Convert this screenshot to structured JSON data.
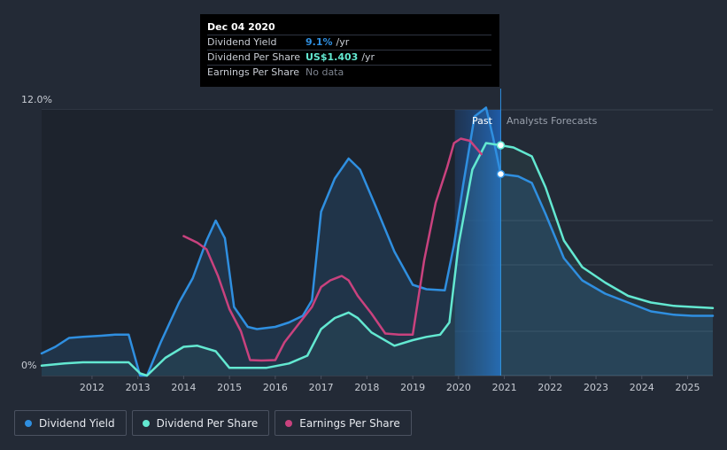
{
  "chart_data": {
    "type": "line",
    "ylim": [
      0,
      12
    ],
    "y_tick_labels": [
      "12.0%",
      "0%"
    ],
    "x_tick_labels": [
      "2012",
      "2013",
      "2014",
      "2015",
      "2016",
      "2017",
      "2018",
      "2019",
      "2020",
      "2021",
      "2022",
      "2023",
      "2024",
      "2025"
    ],
    "xlim": [
      2010.9,
      2025.55
    ],
    "markers": {
      "past_label": "Past",
      "forecast_label": "Analysts Forecasts",
      "past_start": 2019.92,
      "past_end": 2020.92
    },
    "series": [
      {
        "name": "Dividend Yield",
        "color": "#2f8fe0",
        "x": [
          2010.9,
          2011.2,
          2011.5,
          2011.8,
          2012.2,
          2012.5,
          2012.8,
          2013.05,
          2013.2,
          2013.5,
          2013.9,
          2014.2,
          2014.5,
          2014.7,
          2014.9,
          2015.1,
          2015.4,
          2015.6,
          2016.0,
          2016.3,
          2016.6,
          2016.8,
          2017.0,
          2017.3,
          2017.6,
          2017.85,
          2018.2,
          2018.6,
          2019.0,
          2019.3,
          2019.7,
          2019.9,
          2020.1,
          2020.35,
          2020.6,
          2020.75,
          2020.92,
          2021.3,
          2021.6,
          2021.9,
          2022.3,
          2022.7,
          2023.2,
          2023.7,
          2024.2,
          2024.7,
          2025.1,
          2025.55
        ],
        "values": [
          1.0,
          1.3,
          1.7,
          1.75,
          1.8,
          1.85,
          1.85,
          0.0,
          0.0,
          1.5,
          3.3,
          4.4,
          6.1,
          7.0,
          6.2,
          3.1,
          2.2,
          2.1,
          2.2,
          2.4,
          2.7,
          3.4,
          7.4,
          8.9,
          9.8,
          9.3,
          7.6,
          5.6,
          4.1,
          3.9,
          3.85,
          5.9,
          8.6,
          11.7,
          12.1,
          10.8,
          9.1,
          9.0,
          8.7,
          7.3,
          5.3,
          4.3,
          3.7,
          3.3,
          2.9,
          2.75,
          2.7,
          2.7
        ]
      },
      {
        "name": "Dividend Per Share",
        "color": "#63e8d1",
        "x": [
          2010.9,
          2011.4,
          2011.8,
          2012.3,
          2012.8,
          2013.05,
          2013.2,
          2013.6,
          2014.0,
          2014.3,
          2014.7,
          2015.0,
          2015.4,
          2015.8,
          2016.3,
          2016.7,
          2017.0,
          2017.3,
          2017.6,
          2017.8,
          2018.1,
          2018.6,
          2019.0,
          2019.3,
          2019.6,
          2019.8,
          2020.0,
          2020.3,
          2020.6,
          2020.92,
          2021.2,
          2021.6,
          2021.9,
          2022.3,
          2022.7,
          2023.2,
          2023.7,
          2024.2,
          2024.7,
          2025.1,
          2025.55
        ],
        "values": [
          0.45,
          0.55,
          0.6,
          0.6,
          0.6,
          0.1,
          0.0,
          0.8,
          1.3,
          1.35,
          1.1,
          0.35,
          0.35,
          0.35,
          0.55,
          0.9,
          2.1,
          2.6,
          2.85,
          2.6,
          1.95,
          1.35,
          1.6,
          1.75,
          1.85,
          2.4,
          5.9,
          9.3,
          10.5,
          10.4,
          10.3,
          9.9,
          8.5,
          6.1,
          4.9,
          4.2,
          3.6,
          3.3,
          3.15,
          3.1,
          3.05
        ]
      },
      {
        "name": "Earnings Per Share",
        "color": "#c9427e",
        "x": [
          2014.0,
          2014.3,
          2014.5,
          2014.75,
          2015.0,
          2015.25,
          2015.45,
          2015.7,
          2016.0,
          2016.2,
          2016.5,
          2016.8,
          2017.0,
          2017.2,
          2017.45,
          2017.6,
          2017.8,
          2018.1,
          2018.4,
          2018.7,
          2019.0,
          2019.25,
          2019.5,
          2019.75,
          2019.9,
          2020.05,
          2020.25,
          2020.5
        ],
        "values": [
          6.3,
          6.0,
          5.7,
          4.5,
          3.0,
          2.0,
          0.7,
          0.68,
          0.7,
          1.5,
          2.3,
          3.1,
          4.0,
          4.3,
          4.5,
          4.3,
          3.6,
          2.8,
          1.9,
          1.85,
          1.85,
          5.2,
          7.8,
          9.4,
          10.5,
          10.7,
          10.6,
          10.0
        ]
      }
    ]
  },
  "tooltip": {
    "date": "Dec 04 2020",
    "rows": [
      {
        "label": "Dividend Yield",
        "value": "9.1%",
        "unit": "/yr",
        "color": "#2f8fe0"
      },
      {
        "label": "Dividend Per Share",
        "value": "US$1.403",
        "unit": "/yr",
        "color": "#63e8d1"
      },
      {
        "label": "Earnings Per Share",
        "value": "No data",
        "unit": "",
        "color": "#7d838e"
      }
    ]
  },
  "legend": [
    {
      "label": "Dividend Yield",
      "color": "#2f8fe0"
    },
    {
      "label": "Dividend Per Share",
      "color": "#63e8d1"
    },
    {
      "label": "Earnings Per Share",
      "color": "#c9427e"
    }
  ]
}
